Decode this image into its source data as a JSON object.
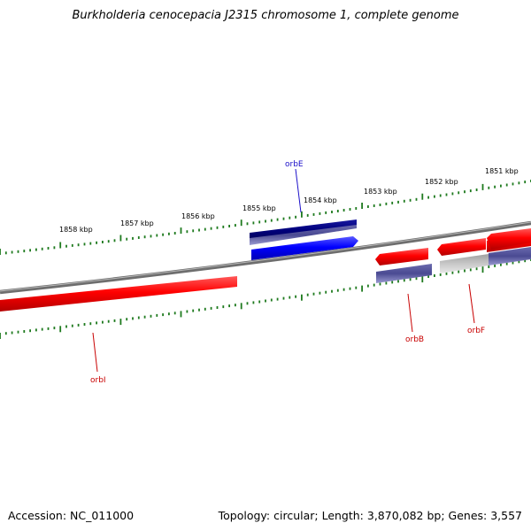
{
  "title": "Burkholderia cenocepacia J2315 chromosome 1, complete genome",
  "footer": {
    "accession": "Accession: NC_011000",
    "summary": "Topology: circular; Length: 3,870,082 bp; Genes: 3,557"
  },
  "kbp_labels": [
    "1858 kbp",
    "1857 kbp",
    "1856 kbp",
    "1855 kbp",
    "1854 kbp",
    "1853 kbp",
    "1852 kbp",
    "1851 kbp"
  ],
  "genes": [
    {
      "name": "orbE",
      "color": "#1a0ec9"
    },
    {
      "name": "orbB",
      "color": "#c80000"
    },
    {
      "name": "orbF",
      "color": "#c80000"
    },
    {
      "name": "orbI",
      "color": "#c80000"
    }
  ],
  "colors": {
    "forward_cds": "#0000ff",
    "reverse_cds": "#ff0000",
    "forward_dark": "#00007d",
    "tick": "#1e7a1e",
    "backbone": "#7a7a7a"
  }
}
